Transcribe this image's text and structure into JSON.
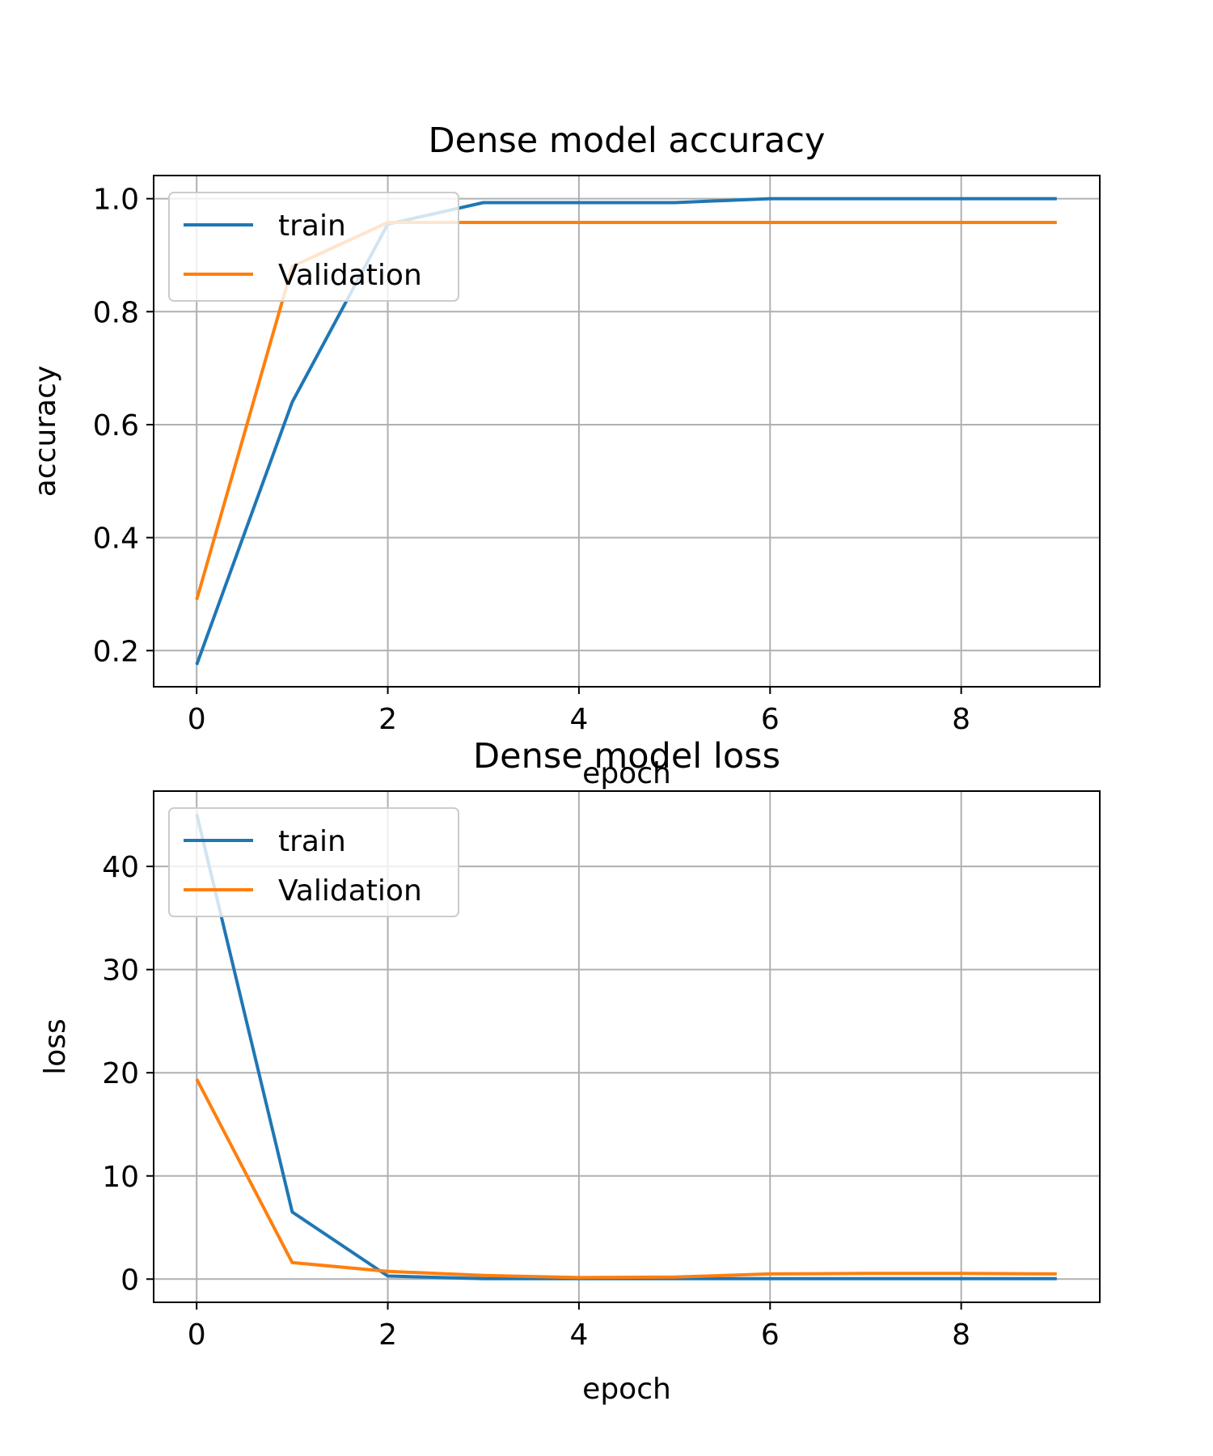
{
  "chart_data": [
    {
      "type": "line",
      "title": "Dense model accuracy",
      "xlabel": "epoch",
      "ylabel": "accuracy",
      "xlim": [
        -0.45,
        9.45
      ],
      "ylim": [
        0.136,
        1.041
      ],
      "xticks": [
        0,
        2,
        4,
        6,
        8
      ],
      "xtick_labels": [
        "0",
        "2",
        "4",
        "6",
        "8"
      ],
      "yticks": [
        0.2,
        0.4,
        0.6,
        0.8,
        1.0
      ],
      "ytick_labels": [
        "0.2",
        "0.4",
        "0.6",
        "0.8",
        "1.0"
      ],
      "grid": true,
      "legend": "upper left",
      "x": [
        0,
        1,
        2,
        3,
        4,
        5,
        6,
        7,
        8,
        9
      ],
      "series": [
        {
          "name": "train",
          "color": "#1f77b4",
          "values": [
            0.175,
            0.64,
            0.955,
            0.993,
            0.993,
            0.993,
            1.0,
            1.0,
            1.0,
            1.0
          ]
        },
        {
          "name": "Validation",
          "color": "#ff7f0e",
          "values": [
            0.29,
            0.88,
            0.958,
            0.958,
            0.958,
            0.958,
            0.958,
            0.958,
            0.958,
            0.958
          ]
        }
      ]
    },
    {
      "type": "line",
      "title": "Dense model loss",
      "xlabel": "epoch",
      "ylabel": "loss",
      "xlim": [
        -0.45,
        9.45
      ],
      "ylim": [
        -2.25,
        47.3
      ],
      "xticks": [
        0,
        2,
        4,
        6,
        8
      ],
      "xtick_labels": [
        "0",
        "2",
        "4",
        "6",
        "8"
      ],
      "yticks": [
        0,
        10,
        20,
        30,
        40
      ],
      "ytick_labels": [
        "0",
        "10",
        "20",
        "30",
        "40"
      ],
      "grid": true,
      "legend": "upper left",
      "x": [
        0,
        1,
        2,
        3,
        4,
        5,
        6,
        7,
        8,
        9
      ],
      "series": [
        {
          "name": "train",
          "color": "#1f77b4",
          "values": [
            45.1,
            6.5,
            0.3,
            0.05,
            0.05,
            0.05,
            0.05,
            0.05,
            0.05,
            0.05
          ]
        },
        {
          "name": "Validation",
          "color": "#ff7f0e",
          "values": [
            19.4,
            1.6,
            0.75,
            0.35,
            0.15,
            0.2,
            0.5,
            0.55,
            0.55,
            0.5
          ]
        }
      ]
    }
  ]
}
